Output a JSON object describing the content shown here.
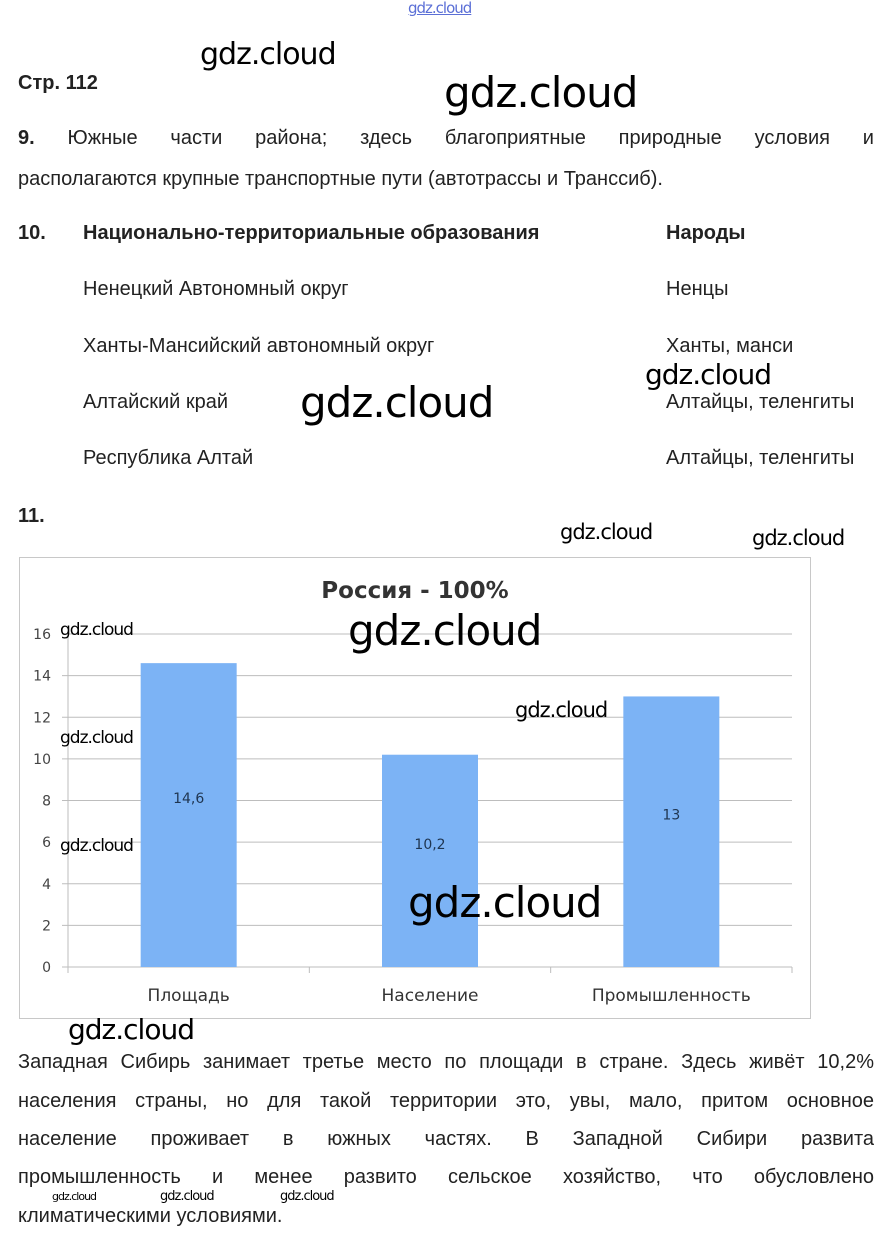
{
  "page_label": "Стр. 112",
  "q9": {
    "number": "9.",
    "line1": "Южные части района; здесь благоприятные природные условия и",
    "line2": "располагаются крупные транспортные пути (автотрассы и Транссиб)."
  },
  "q10": {
    "number": "10.",
    "header_left": "Национально-территориальные образования",
    "header_right": "Народы",
    "rows": [
      {
        "region": "Ненецкий Автономный округ",
        "people": "Ненцы"
      },
      {
        "region": "Ханты-Мансийский автономный округ",
        "people": "Ханты, манси"
      },
      {
        "region": "Алтайский край",
        "people": "Алтайцы, теленгиты"
      },
      {
        "region": "Республика Алтай",
        "people": "Алтайцы, теленгиты"
      }
    ]
  },
  "q11": {
    "number": "11."
  },
  "chart_data": {
    "type": "bar",
    "title": "Россия - 100%",
    "categories": [
      "Площадь",
      "Население",
      "Промышленность"
    ],
    "values": [
      14.6,
      10.2,
      13
    ],
    "data_labels": [
      "14,6",
      "10,2",
      "13"
    ],
    "yticks": [
      "0",
      "2",
      "4",
      "6",
      "8",
      "10",
      "12",
      "14",
      "16"
    ],
    "ylim": [
      0,
      16
    ],
    "grid": true,
    "legend": "none",
    "bar_color": "#7cb3f5"
  },
  "paragraph": [
    "Западная Сибирь занимает третье место по площади в стране. Здесь живёт 10,2%",
    "населения страны, но для такой территории это, увы, мало, притом основное",
    "население проживает в южных частях. В Западной Сибири развита",
    "промышленность и менее развито сельское хозяйство, что обусловлено",
    "климатическими условиями."
  ],
  "watermark": "gdz.cloud"
}
